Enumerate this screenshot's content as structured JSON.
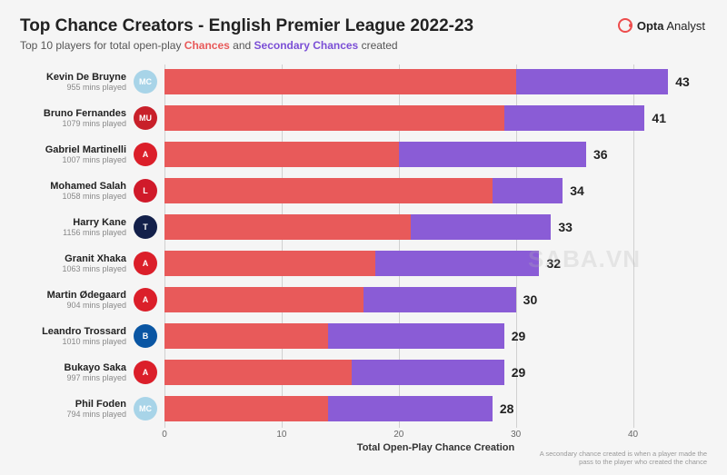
{
  "header": {
    "title": "Top Chance Creators - English Premier League 2022-23",
    "subtitle_pre": "Top 10 players for total open-play ",
    "subtitle_c1": "Chances",
    "subtitle_mid": " and ",
    "subtitle_c2": "Secondary Chances",
    "subtitle_post": " created",
    "c1_color": "#e85a5a",
    "c2_color": "#7b4fd6"
  },
  "logo": {
    "brand": "Opta",
    "suffix": " Analyst"
  },
  "chart": {
    "type": "stacked-horizontal-bar",
    "xmax": 45,
    "xticks": [
      0,
      10,
      20,
      30,
      40
    ],
    "xlabel": "Total Open-Play Chance Creation",
    "bar_color_1": "#e85a5a",
    "bar_color_2": "#8a5cd6",
    "grid_color": "#d0d0d0",
    "background": "#f5f5f5",
    "value_fontsize": 14,
    "name_fontsize": 11,
    "mins_fontsize": 9,
    "players": [
      {
        "name": "Kevin De Bruyne",
        "mins": "955 mins played",
        "seg1": 30,
        "seg2": 13,
        "total": 43,
        "badge_bg": "#a8d4e8",
        "badge_txt": "MC"
      },
      {
        "name": "Bruno Fernandes",
        "mins": "1079 mins played",
        "seg1": 29,
        "seg2": 12,
        "total": 41,
        "badge_bg": "#c8202a",
        "badge_txt": "MU"
      },
      {
        "name": "Gabriel Martinelli",
        "mins": "1007 mins played",
        "seg1": 20,
        "seg2": 16,
        "total": 36,
        "badge_bg": "#db1f2a",
        "badge_txt": "A"
      },
      {
        "name": "Mohamed Salah",
        "mins": "1058 mins played",
        "seg1": 28,
        "seg2": 6,
        "total": 34,
        "badge_bg": "#d01a2a",
        "badge_txt": "L"
      },
      {
        "name": "Harry Kane",
        "mins": "1156 mins played",
        "seg1": 21,
        "seg2": 12,
        "total": 33,
        "badge_bg": "#13204a",
        "badge_txt": "T"
      },
      {
        "name": "Granit Xhaka",
        "mins": "1063 mins played",
        "seg1": 18,
        "seg2": 14,
        "total": 32,
        "badge_bg": "#db1f2a",
        "badge_txt": "A"
      },
      {
        "name": "Martin Ødegaard",
        "mins": "904 mins played",
        "seg1": 17,
        "seg2": 13,
        "total": 30,
        "badge_bg": "#db1f2a",
        "badge_txt": "A"
      },
      {
        "name": "Leandro Trossard",
        "mins": "1010 mins played",
        "seg1": 14,
        "seg2": 15,
        "total": 29,
        "badge_bg": "#0a56a3",
        "badge_txt": "B"
      },
      {
        "name": "Bukayo Saka",
        "mins": "997 mins played",
        "seg1": 16,
        "seg2": 13,
        "total": 29,
        "badge_bg": "#db1f2a",
        "badge_txt": "A"
      },
      {
        "name": "Phil Foden",
        "mins": "794 mins played",
        "seg1": 14,
        "seg2": 14,
        "total": 28,
        "badge_bg": "#a8d4e8",
        "badge_txt": "MC"
      }
    ]
  },
  "footnote": "A secondary chance created is when a player made the pass to the player who created the chance",
  "watermark": "SABA.VN"
}
